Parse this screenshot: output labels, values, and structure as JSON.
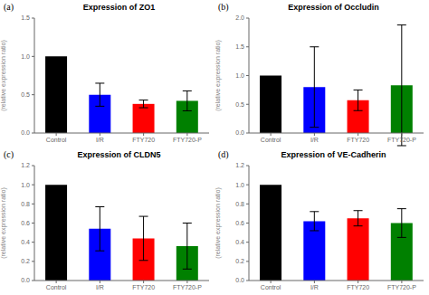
{
  "chart_data": [
    {
      "type": "bar",
      "title": "Expression of ZO1",
      "annotation": "(a)",
      "categories": [
        "Control",
        "I/R",
        "FTY720",
        "FTY720-P"
      ],
      "values": [
        1.0,
        0.5,
        0.38,
        0.42
      ],
      "errors": [
        0.0,
        0.15,
        0.05,
        0.13
      ],
      "colors": [
        "#000000",
        "#0000ff",
        "#ff0000",
        "#008000"
      ],
      "ylabel": "(relative expression ratio)",
      "ylim": [
        0,
        1.5
      ],
      "yticks": [
        {
          "value": 0,
          "label": "0.0"
        },
        0.5,
        {
          "value": 1.0,
          "label": "1.0"
        },
        1.5
      ],
      "grid": false
    },
    {
      "type": "bar",
      "title": "Expression of Occludin",
      "annotation": "(b)",
      "categories": [
        "Control",
        "I/R",
        "FTY720",
        "FTY720-P"
      ],
      "values": [
        1.0,
        0.8,
        0.57,
        0.83
      ],
      "errors": [
        0.0,
        0.7,
        0.18,
        1.05
      ],
      "colors": [
        "#000000",
        "#0000ff",
        "#ff0000",
        "#008000"
      ],
      "ylabel": "(relative expression ratio)",
      "ylim": [
        0,
        2.0
      ],
      "yticks": [
        {
          "value": 0,
          "label": "0.0"
        },
        0.5,
        {
          "value": 1.0,
          "label": "1.0"
        },
        1.5,
        {
          "value": 2.0,
          "label": "2.0"
        }
      ],
      "grid": false
    },
    {
      "type": "bar",
      "title": "Expression of CLDN5",
      "annotation": "(c)",
      "categories": [
        "Control",
        "I/R",
        "FTY720",
        "FTY720-P"
      ],
      "values": [
        1.0,
        0.54,
        0.44,
        0.36
      ],
      "errors": [
        0.0,
        0.23,
        0.23,
        0.24
      ],
      "colors": [
        "#000000",
        "#0000ff",
        "#ff0000",
        "#008000"
      ],
      "ylabel": "(relative expression ratio)",
      "ylim": [
        0,
        1.2
      ],
      "yticks": [
        {
          "value": 0,
          "label": "0.0"
        },
        0.2,
        0.4,
        0.6,
        0.8,
        {
          "value": 1.0,
          "label": "1.0"
        },
        1.2
      ],
      "grid": false
    },
    {
      "type": "bar",
      "title": "Expression of VE-Cadherin",
      "annotation": "(d)",
      "categories": [
        "Control",
        "I/R",
        "FTY720",
        "FTY720-P"
      ],
      "values": [
        1.0,
        0.62,
        0.65,
        0.6
      ],
      "errors": [
        0.0,
        0.1,
        0.08,
        0.15
      ],
      "colors": [
        "#000000",
        "#0000ff",
        "#ff0000",
        "#008000"
      ],
      "ylabel": "(relative expression ratio)",
      "ylim": [
        0,
        1.2
      ],
      "yticks": [
        {
          "value": 0,
          "label": "0.0"
        },
        0.2,
        0.4,
        0.6,
        0.8,
        {
          "value": 1.0,
          "label": "1.0"
        },
        1.2
      ],
      "grid": false
    }
  ]
}
